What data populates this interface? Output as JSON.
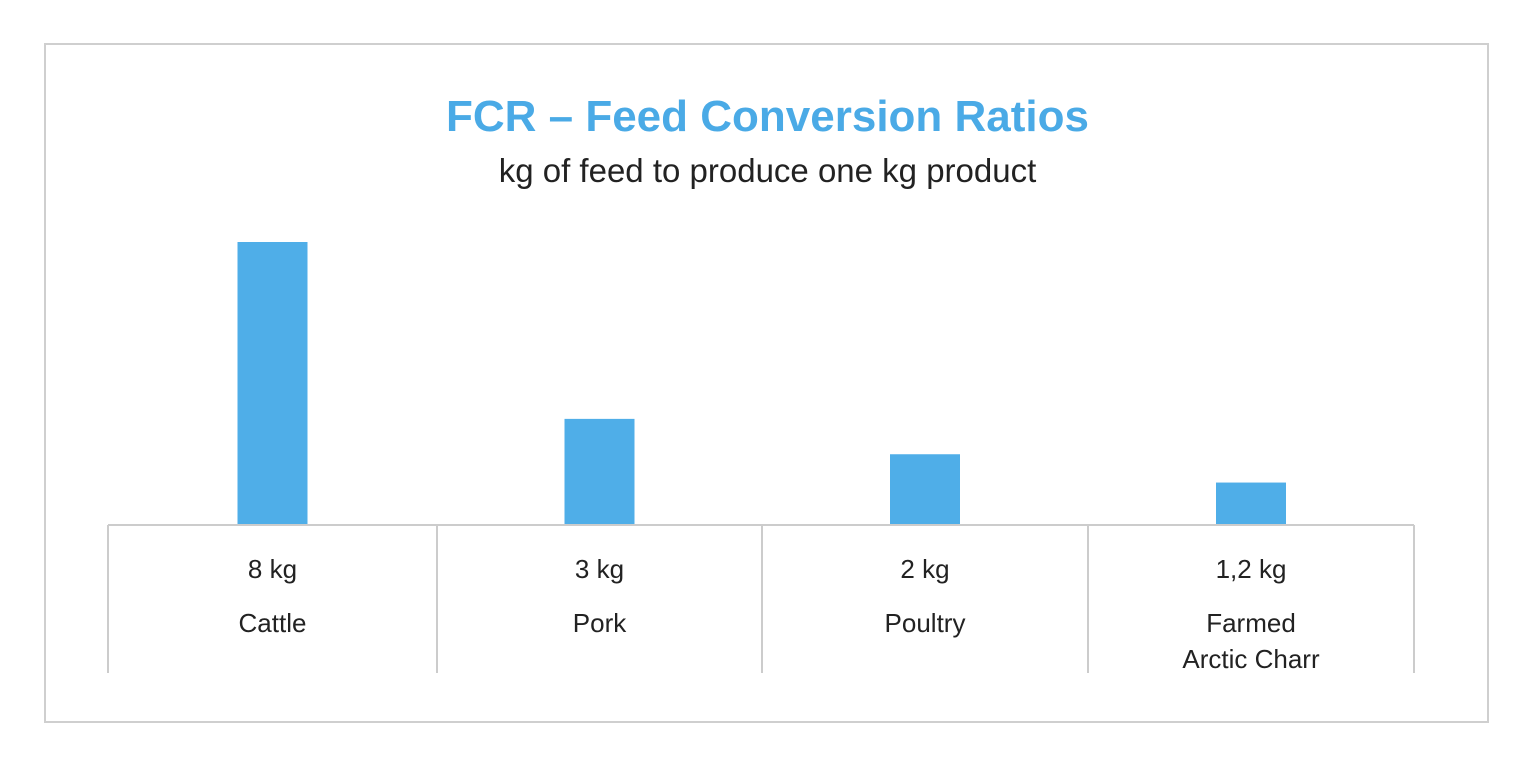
{
  "colors": {
    "bar": "#4faee8",
    "title": "#4aaae6",
    "axis": "#cccccc",
    "frame": "#cfcfcf"
  },
  "chart_data": {
    "type": "bar",
    "title": "FCR – Feed Conversion Ratios",
    "subtitle": "kg of feed to produce one kg product",
    "categories": [
      [
        "Cattle"
      ],
      [
        "Pork"
      ],
      [
        "Poultry"
      ],
      [
        "Farmed",
        "Arctic Charr"
      ]
    ],
    "data_labels": [
      "8 kg",
      "3 kg",
      "2 kg",
      "1,2 kg"
    ],
    "values": [
      8,
      3,
      2,
      1.2
    ],
    "unit": "kg",
    "ylim": [
      0,
      8
    ],
    "grid": false,
    "legend": "none"
  }
}
